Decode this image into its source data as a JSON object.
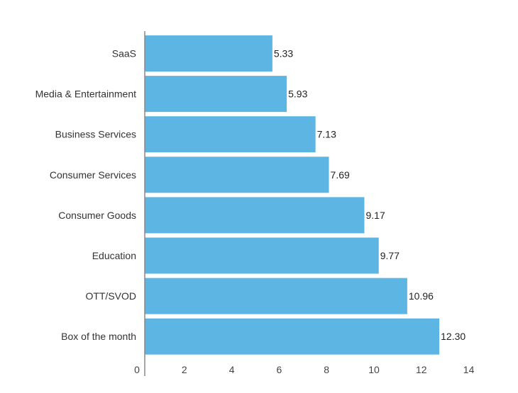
{
  "chart_data": {
    "type": "bar",
    "orientation": "horizontal",
    "categories": [
      "SaaS",
      "Media & Entertainment",
      "Business Services",
      "Consumer Services",
      "Consumer Goods",
      "Education",
      "OTT/SVOD",
      "Box of the month"
    ],
    "values": [
      5.33,
      5.93,
      7.13,
      7.69,
      9.17,
      9.77,
      10.96,
      12.3
    ],
    "value_labels": [
      "5.33",
      "5.93",
      "7.13",
      "7.69",
      "9.17",
      "9.77",
      "10.96",
      "12.30"
    ],
    "title": "",
    "xlabel": "",
    "ylabel": "",
    "xlim": [
      0,
      14
    ],
    "xticks": [
      "0",
      "2",
      "4",
      "6",
      "8",
      "10",
      "12",
      "14"
    ],
    "grid": false,
    "bar_color": "#5DB5E4"
  }
}
